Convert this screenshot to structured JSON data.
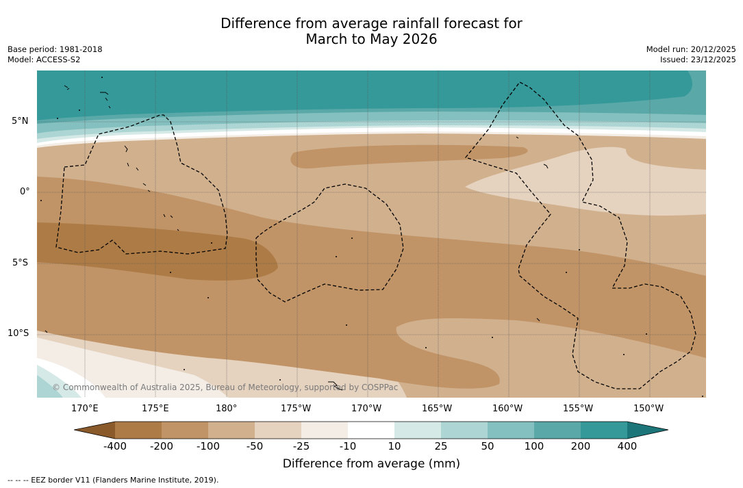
{
  "title": {
    "line1": "Difference from average rainfall forecast for",
    "line2": "March to May 2026"
  },
  "meta": {
    "base_period": "Base period: 1981-2018",
    "model": "Model: ACCESS-S2",
    "model_run": "Model run: 20/12/2025",
    "issued": "Issued: 23/12/2025"
  },
  "map": {
    "lat_labels": [
      "5°N",
      "0°",
      "5°S",
      "10°S"
    ],
    "lon_labels": [
      "170°E",
      "175°E",
      "180°",
      "175°W",
      "170°W",
      "165°W",
      "160°W",
      "155°W",
      "150°W"
    ],
    "copyright": "© Commonwealth of Australia 2025, Bureau of Meteorology, supported by COSPPac"
  },
  "colorbar": {
    "ticks": [
      "-400",
      "-200",
      "-100",
      "-50",
      "-25",
      "-10",
      "10",
      "25",
      "50",
      "100",
      "200",
      "400"
    ],
    "colors": {
      "lt400": "#8a5a2b",
      "c1": "#ad7b45",
      "c2": "#c19467",
      "c3": "#d1b08e",
      "c4": "#e5d2bf",
      "c5": "#f3ede6",
      "c6": "#ffffff",
      "c7": "#d5e9e7",
      "c8": "#acd5d3",
      "c9": "#84c0bf",
      "c10": "#5aa9a8",
      "c11": "#35999a",
      "gt400": "#1c7679"
    },
    "title": "Difference from average (mm)"
  },
  "footnote": "--  --  -- EEZ border V11 (Flanders Marine Institute, 2019)."
}
